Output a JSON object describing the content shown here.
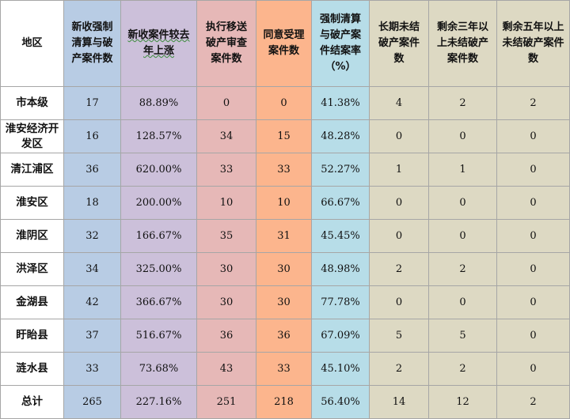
{
  "headers": [
    "地区",
    "新收强制清算与破产案件数",
    "新收案件较去年上涨",
    "执行移送破产审查案件数",
    "同意受理案件数",
    "强制清算与破产案件结案率（%）",
    "长期未结破产案件数",
    "剩余三年以上未结破产案件数",
    "剩余五年以上未结破产案件数"
  ],
  "rows": [
    {
      "region": "市本级",
      "new_cases": "17",
      "growth": "88.89%",
      "transferred": "0",
      "accepted": "0",
      "closure_rate": "41.38%",
      "long_pending": "4",
      "pending_3y": "2",
      "pending_5y": "2"
    },
    {
      "region": "淮安经济开发区",
      "new_cases": "16",
      "growth": "128.57%",
      "transferred": "34",
      "accepted": "15",
      "closure_rate": "48.28%",
      "long_pending": "0",
      "pending_3y": "0",
      "pending_5y": "0"
    },
    {
      "region": "清江浦区",
      "new_cases": "36",
      "growth": "620.00%",
      "transferred": "33",
      "accepted": "33",
      "closure_rate": "52.27%",
      "long_pending": "1",
      "pending_3y": "1",
      "pending_5y": "0"
    },
    {
      "region": "淮安区",
      "new_cases": "18",
      "growth": "200.00%",
      "transferred": "10",
      "accepted": "10",
      "closure_rate": "66.67%",
      "long_pending": "0",
      "pending_3y": "0",
      "pending_5y": "0"
    },
    {
      "region": "淮阴区",
      "new_cases": "32",
      "growth": "166.67%",
      "transferred": "35",
      "accepted": "31",
      "closure_rate": "45.45%",
      "long_pending": "0",
      "pending_3y": "0",
      "pending_5y": "0"
    },
    {
      "region": "洪泽区",
      "new_cases": "34",
      "growth": "325.00%",
      "transferred": "30",
      "accepted": "30",
      "closure_rate": "48.98%",
      "long_pending": "2",
      "pending_3y": "2",
      "pending_5y": "0"
    },
    {
      "region": "金湖县",
      "new_cases": "42",
      "growth": "366.67%",
      "transferred": "30",
      "accepted": "30",
      "closure_rate": "77.78%",
      "long_pending": "0",
      "pending_3y": "0",
      "pending_5y": "0"
    },
    {
      "region": "盱眙县",
      "new_cases": "37",
      "growth": "516.67%",
      "transferred": "36",
      "accepted": "36",
      "closure_rate": "67.09%",
      "long_pending": "5",
      "pending_3y": "5",
      "pending_5y": "0"
    },
    {
      "region": "涟水县",
      "new_cases": "33",
      "growth": "73.68%",
      "transferred": "43",
      "accepted": "33",
      "closure_rate": "45.10%",
      "long_pending": "2",
      "pending_3y": "2",
      "pending_5y": "0"
    },
    {
      "region": "总计",
      "new_cases": "265",
      "growth": "227.16%",
      "transferred": "251",
      "accepted": "218",
      "closure_rate": "56.40%",
      "long_pending": "14",
      "pending_3y": "12",
      "pending_5y": "2"
    }
  ],
  "column_colors": [
    "#ffffff",
    "#b8cce4",
    "#ccc0da",
    "#e6b8b7",
    "#fcb58d",
    "#b7dde8",
    "#ddd9c3",
    "#ddd9c3",
    "#ddd9c3"
  ]
}
